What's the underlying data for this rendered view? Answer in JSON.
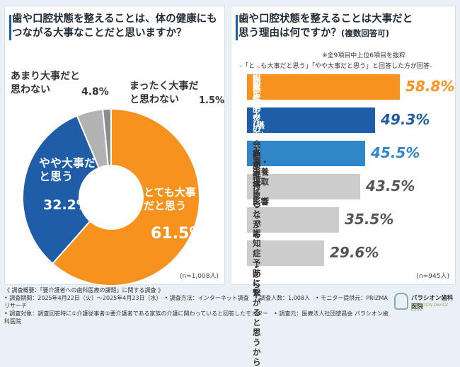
{
  "left_panel": {
    "title_line1": "歯や口腔状態を整えることは、体の健康にも",
    "title_line2": "つながる大事なことだと思いますか？",
    "n": "(n=1,008人)"
  },
  "right_panel": {
    "title_line1": "歯や口腔状態を整えることは大事だと",
    "title_line2": "思う理由は何ですか？",
    "title_sub": "(複数回答可)",
    "note1": "※全9項目中上位6項目を抜粋",
    "note2": "-「とても大事だと思う」「やや大事だと思う」と回答した方が回答-",
    "n": "(n=945人)"
  },
  "chart_data": [
    {
      "type": "pie",
      "title": "歯や口腔状態を整えることは、体の健康にもつながる大事なことだと思いますか？",
      "slices": [
        {
          "label": "とても大事だと思う",
          "value": 61.5,
          "display": "61.5%",
          "color": "#f7921e",
          "text_color": "#ffffff"
        },
        {
          "label": "やや大事だと思う",
          "value": 32.2,
          "display": "32.2%",
          "color": "#1f5da8",
          "text_color": "#ffffff"
        },
        {
          "label": "あまり大事だと思わない",
          "value": 4.8,
          "display": "4.8%",
          "color": "#b3b3b3",
          "text_color": "#333333"
        },
        {
          "label": "まったく大事だと思わない",
          "value": 1.5,
          "display": "1.5%",
          "color": "#8c8c8c",
          "text_color": "#333333"
        }
      ]
    },
    {
      "type": "bar",
      "orientation": "horizontal",
      "title": "歯や口腔状態を整えることは大事だと思う理由は何ですか？（複数回答可）",
      "unit": "%",
      "xlim": [
        0,
        60
      ],
      "categories": [
        "病気の予防になるから",
        "食べ物の飲み込み(嚥下)を\n助けるから",
        "誤嚥性肺炎の\nリスクを減らせるから",
        "食事・栄養摂取に\n影響するから",
        "健康維持に\nつながると思うから",
        "会話ができることで\n認知症予防に繋がると思うから"
      ],
      "values": [
        58.8,
        49.3,
        45.5,
        43.5,
        35.5,
        29.6
      ],
      "display": [
        "58.8%",
        "49.3%",
        "45.5%",
        "43.5%",
        "35.5%",
        "29.6%"
      ],
      "bar_colors": [
        "#f7921e",
        "#1f5da8",
        "#2f86c9",
        "#cccccc",
        "#cccccc",
        "#cccccc"
      ],
      "text_colors": [
        "#ffffff",
        "#ffffff",
        "#ffffff",
        "#333333",
        "#333333",
        "#333333"
      ],
      "value_colors": [
        "#f7921e",
        "#1f5da8",
        "#2f86c9",
        "#555555",
        "#555555",
        "#555555"
      ]
    }
  ],
  "footer": {
    "line1": "《 調査概要：「要介護者への歯科医療の課題」に関する調査 》",
    "line2": "• 調査期間：2025年4月22日（火）～2025年4月23日（水）　• 調査方法：インターネット調査　• 調査人数：1,008人　• モニター提供元：PRIZMAリサーチ",
    "line3": "• 調査対象：調査回答時に①介護従事者②要介護者である家族の介護に関わっていると回答したモニター　• 調査元：医療法人社団徳昌会 パラシオン歯科医院"
  },
  "logo": {
    "name": "パラシオン歯科医院",
    "sub": "PALACION Dental Clinic"
  }
}
